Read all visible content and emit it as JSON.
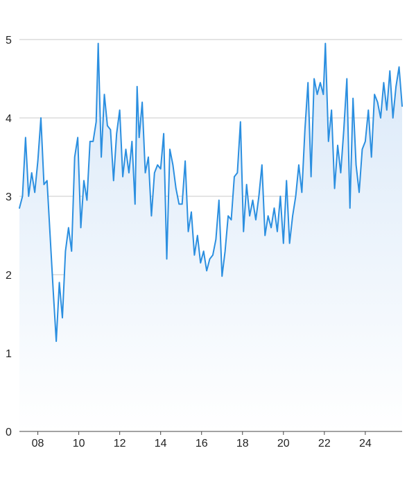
{
  "chart_data": {
    "type": "area",
    "title": "",
    "xlabel": "",
    "ylabel": "",
    "x_range": [
      2007.1,
      2025.8
    ],
    "ylim": [
      0,
      5
    ],
    "x_ticks": [
      2008,
      2010,
      2012,
      2014,
      2016,
      2018,
      2020,
      2022,
      2024
    ],
    "x_tick_labels": [
      "08",
      "10",
      "12",
      "14",
      "16",
      "18",
      "20",
      "22",
      "24"
    ],
    "y_ticks": [
      0,
      1,
      2,
      3,
      4,
      5
    ],
    "y_tick_labels": [
      "0",
      "1",
      "2",
      "3",
      "4",
      "5"
    ],
    "grid": "horizontal",
    "legend": "none",
    "series": [
      {
        "x": [
          2007.1,
          2007.25,
          2007.4,
          2007.55,
          2007.7,
          2007.85,
          2008.0,
          2008.15,
          2008.3,
          2008.45,
          2008.6,
          2008.75,
          2008.9,
          2009.05,
          2009.2,
          2009.35,
          2009.5,
          2009.65,
          2009.8,
          2009.95,
          2010.1,
          2010.25,
          2010.4,
          2010.55,
          2010.7,
          2010.85,
          2010.95,
          2011.1,
          2011.25,
          2011.4,
          2011.55,
          2011.7,
          2011.85,
          2012.0,
          2012.15,
          2012.3,
          2012.45,
          2012.6,
          2012.75,
          2012.85,
          2012.95,
          2013.1,
          2013.25,
          2013.4,
          2013.55,
          2013.7,
          2013.85,
          2014.0,
          2014.15,
          2014.3,
          2014.45,
          2014.6,
          2014.75,
          2014.9,
          2015.05,
          2015.2,
          2015.35,
          2015.5,
          2015.65,
          2015.8,
          2015.95,
          2016.1,
          2016.25,
          2016.4,
          2016.55,
          2016.7,
          2016.85,
          2017.0,
          2017.15,
          2017.3,
          2017.45,
          2017.6,
          2017.75,
          2017.9,
          2018.05,
          2018.2,
          2018.35,
          2018.5,
          2018.65,
          2018.8,
          2018.95,
          2019.1,
          2019.25,
          2019.4,
          2019.55,
          2019.7,
          2019.85,
          2020.0,
          2020.15,
          2020.3,
          2020.45,
          2020.6,
          2020.75,
          2020.9,
          2021.05,
          2021.2,
          2021.35,
          2021.5,
          2021.65,
          2021.8,
          2021.95,
          2022.05,
          2022.2,
          2022.35,
          2022.5,
          2022.65,
          2022.8,
          2022.95,
          2023.1,
          2023.25,
          2023.4,
          2023.55,
          2023.7,
          2023.85,
          2024.0,
          2024.15,
          2024.3,
          2024.45,
          2024.6,
          2024.75,
          2024.9,
          2025.05,
          2025.2,
          2025.35,
          2025.5,
          2025.65,
          2025.8
        ],
        "y": [
          2.85,
          3.0,
          3.75,
          3.0,
          3.3,
          3.05,
          3.45,
          4.0,
          3.15,
          3.2,
          2.5,
          1.8,
          1.15,
          1.9,
          1.45,
          2.3,
          2.6,
          2.3,
          3.5,
          3.75,
          2.6,
          3.2,
          2.95,
          3.7,
          3.7,
          3.95,
          4.95,
          3.5,
          4.3,
          3.9,
          3.85,
          3.2,
          3.8,
          4.1,
          3.25,
          3.6,
          3.3,
          3.7,
          2.9,
          4.4,
          3.75,
          4.2,
          3.3,
          3.5,
          2.75,
          3.3,
          3.4,
          3.35,
          3.8,
          2.2,
          3.6,
          3.4,
          3.1,
          2.9,
          2.9,
          3.45,
          2.55,
          2.8,
          2.25,
          2.5,
          2.15,
          2.3,
          2.05,
          2.2,
          2.25,
          2.45,
          2.95,
          1.98,
          2.3,
          2.75,
          2.7,
          3.25,
          3.3,
          3.95,
          2.55,
          3.15,
          2.75,
          2.95,
          2.7,
          3.0,
          3.4,
          2.5,
          2.75,
          2.6,
          2.85,
          2.55,
          3.0,
          2.4,
          3.2,
          2.4,
          2.75,
          3.0,
          3.4,
          3.05,
          3.85,
          4.45,
          3.25,
          4.5,
          4.3,
          4.45,
          4.3,
          4.95,
          3.7,
          4.1,
          3.1,
          3.65,
          3.3,
          3.85,
          4.5,
          2.85,
          4.25,
          3.4,
          3.05,
          3.6,
          3.7,
          4.1,
          3.5,
          4.3,
          4.2,
          4.0,
          4.45,
          4.1,
          4.6,
          4.0,
          4.4,
          4.65,
          4.15
        ]
      }
    ]
  },
  "colors": {
    "line": "#2b8fe0",
    "fill_top": "#d9e8f8",
    "fill_bottom": "#ffffff",
    "grid": "#c8c8c8",
    "axis": "#444444",
    "text": "#222222"
  }
}
